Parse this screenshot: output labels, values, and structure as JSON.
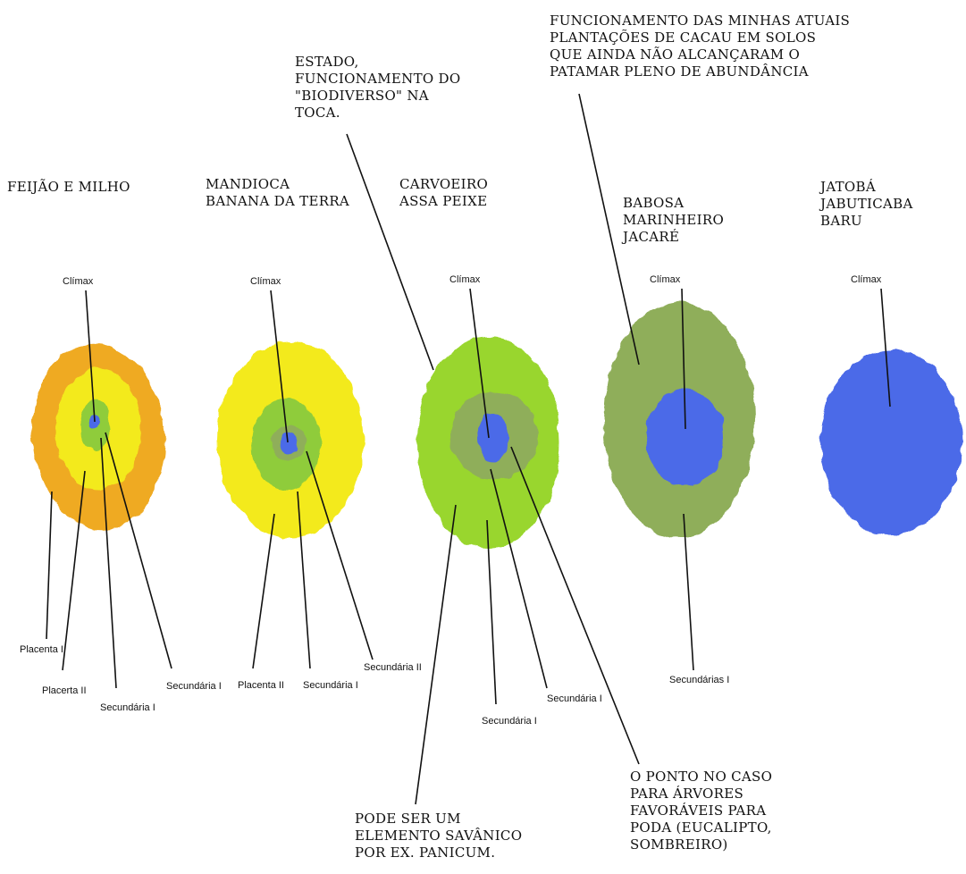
{
  "captions": {
    "feijao_milho": [
      "FEIJÃO E MILHO"
    ],
    "mandioca": [
      "MANDIOCA",
      "BANANA DA TERRA"
    ],
    "carvoeiro": [
      "CARVOEIRO",
      "ASSA PEIXE"
    ],
    "babosa": [
      "BABOSA",
      "MARINHEIRO",
      "JACARÉ"
    ],
    "jatoba": [
      "JATOBÁ",
      "JABUTICABA",
      "BARU"
    ],
    "estado": [
      "ESTADO,",
      "FUNCIONAMENTO DO",
      "\"BIODIVERSO\" NA",
      "TOCA."
    ],
    "funcionamento": [
      "FUNCIONAMENTO DAS MINHAS ATUAIS",
      "PLANTAÇÕES DE CACAU EM SOLOS",
      "QUE AINDA NÃO ALCANÇARAM O",
      "PATAMAR PLENO DE ABUNDÂNCIA"
    ],
    "pode_ser": [
      "PODE SER UM",
      "ELEMENTO SAVÂNICO",
      "POR EX. PANICUM."
    ],
    "o_ponto": [
      "O PONTO NO CASO",
      "PARA ÁRVORES",
      "FAVORÁVEIS PARA",
      "PODA (EUCALIPTO,",
      "SOMBREIRO)"
    ]
  },
  "labels": {
    "climax": "Clímax",
    "placenta_i": "Placenta I",
    "placenta_ii_1": "Placenta II",
    "placerta_ii": "Placerta II",
    "secundaria_i": "Secundária I",
    "secundaria_ii": "Secundária II",
    "secundarias_i": "Secundárias I"
  },
  "colors": {
    "orange": "#efaa24",
    "yellow": "#f3ea1e",
    "light_green": "#8fcc3a",
    "bright_green": "#99d62e",
    "olive_green": "#8fae5a",
    "blue": "#4b6ae8"
  }
}
